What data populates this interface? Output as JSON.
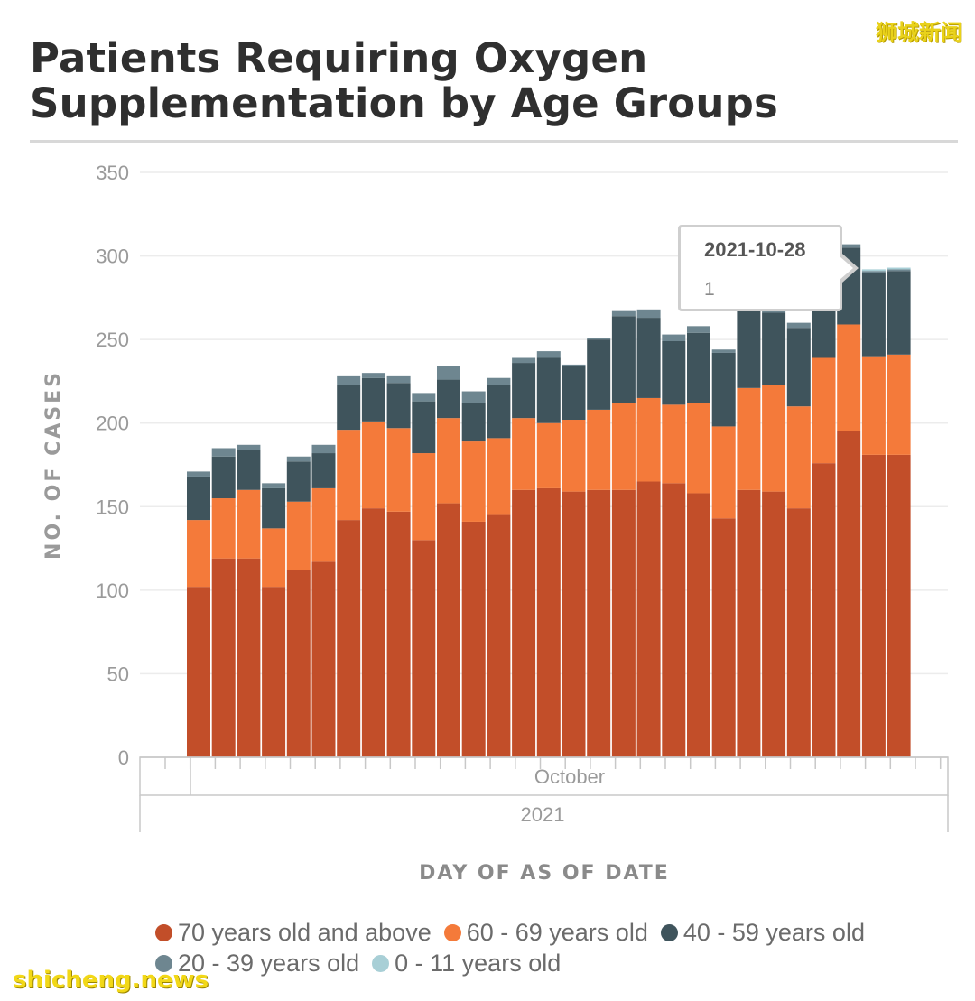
{
  "title": "Patients Requiring Oxygen Supplementation by Age Groups",
  "watermark_top": "狮城新闻",
  "watermark_bottom": "shicheng.news",
  "tooltip": {
    "date": "2021-10-28",
    "value": "1"
  },
  "chart_data": {
    "type": "bar",
    "stacked": true,
    "title": "Patients Requiring Oxygen Supplementation by Age Groups",
    "xlabel": "DAY OF AS OF DATE",
    "ylabel": "NO. OF CASES",
    "ylim": [
      0,
      350
    ],
    "yticks": [
      0,
      50,
      100,
      150,
      200,
      250,
      300,
      350
    ],
    "x_month_label": "October",
    "x_year_label": "2021",
    "categories": [
      "2021-10-01",
      "2021-10-02",
      "2021-10-03",
      "2021-10-04",
      "2021-10-05",
      "2021-10-06",
      "2021-10-07",
      "2021-10-08",
      "2021-10-09",
      "2021-10-10",
      "2021-10-11",
      "2021-10-12",
      "2021-10-13",
      "2021-10-14",
      "2021-10-15",
      "2021-10-16",
      "2021-10-17",
      "2021-10-18",
      "2021-10-19",
      "2021-10-20",
      "2021-10-21",
      "2021-10-22",
      "2021-10-23",
      "2021-10-24",
      "2021-10-25",
      "2021-10-26",
      "2021-10-27",
      "2021-10-28",
      "2021-10-29"
    ],
    "series": [
      {
        "name": "70 years old and above",
        "color": "#c24e29",
        "values": [
          102,
          119,
          119,
          102,
          112,
          117,
          142,
          149,
          147,
          130,
          152,
          141,
          145,
          160,
          161,
          159,
          160,
          160,
          165,
          164,
          158,
          143,
          160,
          159,
          149,
          176,
          195,
          181,
          181
        ]
      },
      {
        "name": "60 - 69 years old",
        "color": "#f47a3a",
        "values": [
          40,
          36,
          41,
          35,
          41,
          44,
          54,
          52,
          50,
          52,
          51,
          48,
          46,
          43,
          39,
          43,
          48,
          52,
          50,
          47,
          54,
          55,
          61,
          64,
          61,
          63,
          64,
          59,
          60
        ]
      },
      {
        "name": "40 - 59 years old",
        "color": "#3f545c",
        "values": [
          26,
          25,
          24,
          24,
          24,
          21,
          27,
          26,
          27,
          31,
          23,
          23,
          32,
          33,
          39,
          32,
          42,
          52,
          48,
          38,
          42,
          44,
          48,
          43,
          47,
          50,
          46,
          50,
          50
        ]
      },
      {
        "name": "20 - 39 years old",
        "color": "#6e8690",
        "values": [
          3,
          5,
          3,
          3,
          3,
          5,
          5,
          3,
          4,
          5,
          8,
          7,
          4,
          3,
          4,
          1,
          1,
          3,
          5,
          4,
          4,
          2,
          4,
          3,
          3,
          3,
          2,
          1,
          1
        ]
      },
      {
        "name": "0 - 11 years old",
        "color": "#a8cfd6",
        "values": [
          0,
          0,
          0,
          0,
          0,
          0,
          0,
          0,
          0,
          0,
          0,
          0,
          0,
          0,
          0,
          0,
          0,
          0,
          0,
          0,
          0,
          0,
          0,
          0,
          0,
          0,
          0,
          1,
          1
        ]
      }
    ],
    "legend_position": "bottom"
  }
}
